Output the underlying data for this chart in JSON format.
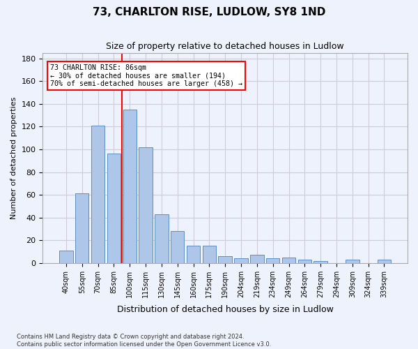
{
  "title": "73, CHARLTON RISE, LUDLOW, SY8 1ND",
  "subtitle": "Size of property relative to detached houses in Ludlow",
  "xlabel": "Distribution of detached houses by size in Ludlow",
  "ylabel": "Number of detached properties",
  "footnote1": "Contains HM Land Registry data © Crown copyright and database right 2024.",
  "footnote2": "Contains public sector information licensed under the Open Government Licence v3.0.",
  "bar_labels": [
    "40sqm",
    "55sqm",
    "70sqm",
    "85sqm",
    "100sqm",
    "115sqm",
    "130sqm",
    "145sqm",
    "160sqm",
    "175sqm",
    "190sqm",
    "204sqm",
    "219sqm",
    "234sqm",
    "249sqm",
    "264sqm",
    "279sqm",
    "294sqm",
    "309sqm",
    "324sqm",
    "339sqm"
  ],
  "bar_values": [
    11,
    61,
    121,
    96,
    135,
    102,
    43,
    28,
    15,
    15,
    6,
    4,
    7,
    4,
    5,
    3,
    2,
    0,
    3,
    0,
    3
  ],
  "bar_color": "#aec6e8",
  "bar_edge_color": "#5a8fc0",
  "grid_color": "#ccccdd",
  "background_color": "#eef2fc",
  "vline_x": 3.5,
  "vline_color": "red",
  "annotation_line1": "73 CHARLTON RISE: 86sqm",
  "annotation_line2": "← 30% of detached houses are smaller (194)",
  "annotation_line3": "70% of semi-detached houses are larger (458) →",
  "annotation_box_color": "white",
  "annotation_border_color": "red",
  "ylim": [
    0,
    185
  ],
  "yticks": [
    0,
    20,
    40,
    60,
    80,
    100,
    120,
    140,
    160,
    180
  ]
}
